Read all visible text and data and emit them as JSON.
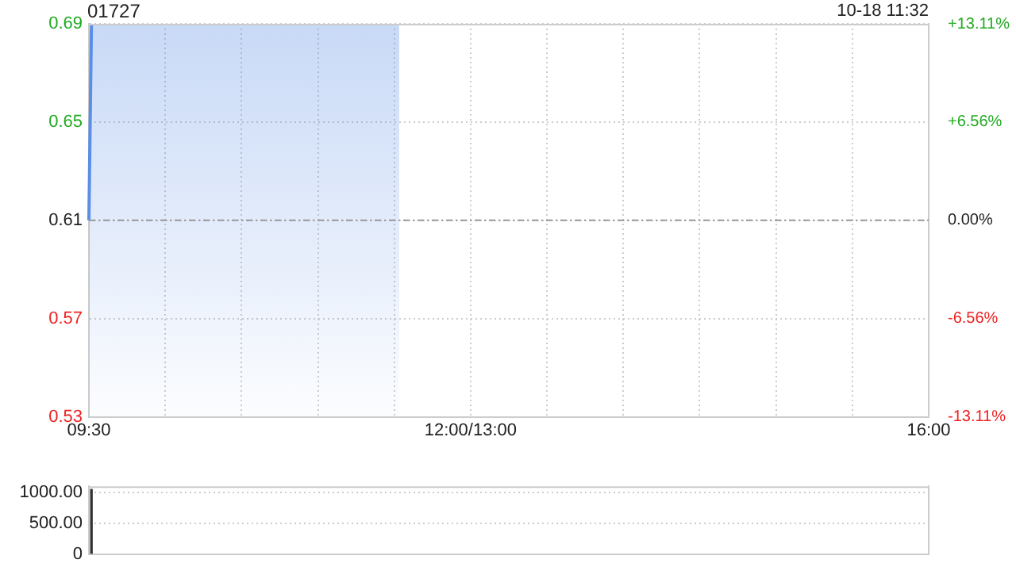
{
  "chart_data": [
    {
      "type": "area",
      "title": "01727",
      "subtitle": "10-18 11:32",
      "categories": [
        "09:30",
        null,
        null,
        null,
        null,
        null,
        null,
        null,
        null,
        null,
        null,
        null,
        null,
        null,
        null,
        null,
        null,
        null,
        null,
        null,
        null,
        null,
        null,
        null,
        null,
        null,
        null,
        null,
        null,
        null,
        null,
        null,
        null,
        null,
        null,
        null,
        null,
        null,
        null,
        null,
        null,
        null,
        null,
        null,
        null,
        null,
        null,
        null,
        null,
        null,
        null,
        null,
        null,
        null,
        null,
        null,
        null,
        null,
        null,
        null,
        null,
        null,
        null,
        null,
        null,
        null,
        null,
        null,
        null,
        null,
        null,
        null,
        null,
        null,
        null,
        null,
        null,
        null,
        null,
        null,
        null,
        null,
        null,
        null,
        null,
        null,
        null,
        null,
        null,
        null,
        null,
        null,
        null,
        null,
        null,
        null,
        null,
        null,
        null,
        null,
        null,
        null,
        null,
        null,
        null,
        null,
        null,
        null,
        null,
        null,
        null,
        null,
        null,
        null,
        null,
        null,
        null,
        null,
        null,
        null,
        null,
        null,
        null,
        null,
        null,
        null,
        null,
        null,
        null,
        null,
        null,
        null,
        null,
        null,
        null,
        null,
        null,
        null,
        null,
        null,
        null,
        null,
        null,
        null,
        null,
        null,
        null,
        null,
        null,
        null,
        "12:00/13:00",
        null,
        null,
        null,
        null,
        null,
        null,
        null,
        null,
        null,
        null,
        null,
        null,
        null,
        null,
        null,
        null,
        null,
        null,
        null,
        null,
        null,
        null,
        null,
        null,
        null,
        null,
        null,
        null,
        null,
        null,
        null,
        null,
        null,
        null,
        null,
        null,
        null,
        null,
        null,
        null,
        null,
        null,
        null,
        null,
        null,
        null,
        null,
        null,
        null,
        null,
        null,
        null,
        null,
        null,
        null,
        null,
        null,
        null,
        null,
        null,
        null,
        null,
        null,
        null,
        null,
        null,
        null,
        null,
        null,
        null,
        null,
        null,
        null,
        null,
        null,
        null,
        null,
        null,
        null,
        null,
        null,
        null,
        null,
        null,
        null,
        null,
        null,
        null,
        null,
        null,
        null,
        null,
        null,
        null,
        null,
        null,
        null,
        null,
        null,
        null,
        null,
        null,
        null,
        null,
        null,
        null,
        null,
        null,
        null,
        null,
        null,
        null,
        null,
        null,
        null,
        null,
        null,
        null,
        null,
        null,
        null,
        null,
        null,
        null,
        null,
        null,
        null,
        null,
        null,
        null,
        null,
        null,
        null,
        null,
        null,
        null,
        null,
        null,
        null,
        null,
        null,
        null,
        null,
        null,
        null,
        null,
        null,
        null,
        null,
        null,
        null,
        null,
        null,
        null,
        null,
        null,
        null,
        null,
        null,
        null,
        null,
        null,
        null,
        null,
        null,
        null,
        null,
        null,
        null,
        null,
        null,
        null,
        null,
        null,
        null,
        null,
        null,
        null,
        null,
        "16:00"
      ],
      "series": [
        {
          "color": "#5b8ee6",
          "values": [
            0.61,
            0.69,
            0.69,
            0.69,
            0.69,
            0.69,
            0.69,
            0.69,
            0.69,
            0.69,
            0.69,
            0.69,
            0.69,
            0.69,
            0.69,
            0.69,
            0.69,
            0.69,
            0.69,
            0.69,
            0.69,
            0.69,
            0.69,
            0.69,
            0.69,
            0.69,
            0.69,
            0.69,
            0.69,
            0.69,
            0.69,
            0.69,
            0.69,
            0.69,
            0.69,
            0.69,
            0.69,
            0.69,
            0.69,
            0.69,
            0.69,
            0.69,
            0.69,
            0.69,
            0.69,
            0.69,
            0.69,
            0.69,
            0.69,
            0.69,
            0.69,
            0.69,
            0.69,
            0.69,
            0.69,
            0.69,
            0.69,
            0.69,
            0.69,
            0.69,
            0.69,
            0.69,
            0.69,
            0.69,
            0.69,
            0.69,
            0.69,
            0.69,
            0.69,
            0.69,
            0.69,
            0.69,
            0.69,
            0.69,
            0.69,
            0.69,
            0.69,
            0.69,
            0.69,
            0.69,
            0.69,
            0.69,
            0.69,
            0.69,
            0.69,
            0.69,
            0.69,
            0.69,
            0.69,
            0.69,
            0.69,
            0.69,
            0.69,
            0.69,
            0.69,
            0.69,
            0.69,
            0.69,
            0.69,
            0.69,
            0.69,
            0.69,
            0.69,
            0.69,
            0.69,
            0.69,
            0.69,
            0.69,
            0.69,
            0.69,
            0.69,
            0.69,
            0.69,
            0.69,
            0.69,
            0.69,
            0.69,
            0.69,
            0.69,
            0.69,
            0.69,
            0.69,
            0.69,
            null,
            null,
            null,
            null,
            null,
            null,
            null,
            null,
            null,
            null,
            null,
            null,
            null,
            null,
            null,
            null,
            null,
            null,
            null,
            null,
            null,
            null,
            null,
            null,
            null,
            null,
            null,
            null,
            null,
            null,
            null,
            null,
            null,
            null,
            null,
            null,
            null,
            null,
            null,
            null,
            null,
            null,
            null,
            null,
            null,
            null,
            null,
            null,
            null,
            null,
            null,
            null,
            null,
            null,
            null,
            null,
            null,
            null,
            null,
            null,
            null,
            null,
            null,
            null,
            null,
            null,
            null,
            null,
            null,
            null,
            null,
            null,
            null,
            null,
            null,
            null,
            null,
            null,
            null,
            null,
            null,
            null,
            null,
            null,
            null,
            null,
            null,
            null,
            null,
            null,
            null,
            null,
            null,
            null,
            null,
            null,
            null,
            null,
            null,
            null,
            null,
            null,
            null,
            null,
            null,
            null,
            null,
            null,
            null,
            null,
            null,
            null,
            null,
            null,
            null,
            null,
            null,
            null,
            null,
            null,
            null,
            null,
            null,
            null,
            null,
            null,
            null,
            null,
            null,
            null,
            null,
            null,
            null,
            null,
            null,
            null,
            null,
            null,
            null,
            null,
            null,
            null,
            null,
            null,
            null,
            null,
            null,
            null,
            null,
            null,
            null,
            null,
            null,
            null,
            null,
            null,
            null,
            null,
            null,
            null,
            null,
            null,
            null,
            null,
            null,
            null,
            null,
            null,
            null,
            null,
            null,
            null,
            null,
            null,
            null,
            null,
            null,
            null,
            null,
            null,
            null,
            null,
            null,
            null,
            null,
            null,
            null,
            null,
            null,
            null,
            null,
            null,
            null,
            null,
            null,
            null,
            null,
            null,
            null,
            null,
            null,
            null,
            null,
            null,
            null,
            null,
            null,
            null
          ]
        }
      ],
      "ylim": [
        0.53,
        0.69
      ],
      "yticks": [
        0.53,
        0.57,
        0.61,
        0.65,
        0.69
      ],
      "y2lim": [
        -13.11,
        13.11
      ],
      "y2ticks": [
        {
          "value": -13.11,
          "label": "-13.11%"
        },
        {
          "value": -6.56,
          "label": "-6.56%"
        },
        {
          "value": 0,
          "label": "0.00%"
        },
        {
          "value": 6.56,
          "label": "+6.56%"
        },
        {
          "value": 13.11,
          "label": "+13.11%"
        }
      ],
      "ref_lines": [
        {
          "axis": "y",
          "value": 0.61
        }
      ],
      "grid": true,
      "legend": false
    },
    {
      "type": "bar",
      "categories": [
        null,
        null,
        null,
        null,
        null,
        null,
        null,
        null,
        null,
        null,
        null,
        null,
        null,
        null,
        null,
        null,
        null,
        null,
        null,
        null,
        null,
        null,
        null,
        null,
        null,
        null,
        null,
        null,
        null,
        null,
        null,
        null,
        null,
        null,
        null,
        null,
        null,
        null,
        null,
        null,
        null,
        null,
        null,
        null,
        null,
        null,
        null,
        null,
        null,
        null,
        null,
        null,
        null,
        null,
        null,
        null,
        null,
        null,
        null,
        null,
        null,
        null,
        null,
        null,
        null,
        null,
        null,
        null,
        null,
        null,
        null,
        null,
        null,
        null,
        null,
        null,
        null,
        null,
        null,
        null,
        null,
        null,
        null,
        null,
        null,
        null,
        null,
        null,
        null,
        null,
        null,
        null,
        null,
        null,
        null,
        null,
        null,
        null,
        null,
        null,
        null,
        null,
        null,
        null,
        null,
        null,
        null,
        null,
        null,
        null,
        null,
        null,
        null,
        null,
        null,
        null,
        null,
        null,
        null,
        null,
        null,
        null,
        null,
        null,
        null,
        null,
        null,
        null,
        null,
        null,
        null,
        null,
        null,
        null,
        null,
        null,
        null,
        null,
        null,
        null,
        null,
        null,
        null,
        null,
        null,
        null,
        null,
        null,
        null,
        null,
        null,
        null,
        null,
        null,
        null,
        null,
        null,
        null,
        null,
        null,
        null,
        null,
        null,
        null,
        null,
        null,
        null,
        null,
        null,
        null,
        null,
        null,
        null,
        null,
        null,
        null,
        null,
        null,
        null,
        null,
        null,
        null,
        null,
        null,
        null,
        null,
        null,
        null,
        null,
        null,
        null,
        null,
        null,
        null,
        null,
        null,
        null,
        null,
        null,
        null,
        null,
        null,
        null,
        null,
        null,
        null,
        null,
        null,
        null,
        null,
        null,
        null,
        null,
        null,
        null,
        null,
        null,
        null,
        null,
        null,
        null,
        null,
        null,
        null,
        null,
        null,
        null,
        null,
        null,
        null,
        null,
        null,
        null,
        null,
        null,
        null,
        null,
        null,
        null,
        null,
        null,
        null,
        null,
        null,
        null,
        null,
        null,
        null,
        null,
        null,
        null,
        null,
        null,
        null,
        null,
        null,
        null,
        null,
        null,
        null,
        null,
        null,
        null,
        null,
        null,
        null,
        null,
        null,
        null,
        null,
        null,
        null,
        null,
        null,
        null,
        null,
        null,
        null,
        null,
        null,
        null,
        null,
        null,
        null,
        null,
        null,
        null,
        null,
        null,
        null,
        null,
        null,
        null,
        null,
        null,
        null,
        null,
        null,
        null,
        null,
        null,
        null,
        null,
        null,
        null,
        null,
        null,
        null,
        null,
        null,
        null,
        null,
        null,
        null,
        null,
        null,
        null,
        null,
        null,
        null,
        null,
        null,
        null,
        null,
        null,
        null,
        null,
        null,
        null,
        null,
        null
      ],
      "values": [
        null,
        1050,
        null,
        null,
        null,
        null,
        null,
        null,
        null,
        null,
        null,
        null,
        null,
        null,
        null,
        null,
        null,
        null,
        null,
        null,
        null,
        null,
        null,
        null,
        null,
        null,
        null,
        null,
        null,
        null,
        null,
        null,
        null,
        null,
        null,
        null,
        null,
        null,
        null,
        null,
        null,
        null,
        null,
        null,
        null,
        null,
        null,
        null,
        null,
        null,
        null,
        null,
        null,
        null,
        null,
        null,
        null,
        null,
        null,
        null,
        null,
        null,
        null,
        null,
        null,
        null,
        null,
        null,
        null,
        null,
        null,
        null,
        null,
        null,
        null,
        null,
        null,
        null,
        null,
        null,
        null,
        null,
        null,
        null,
        null,
        null,
        null,
        null,
        null,
        null,
        null,
        null,
        null,
        null,
        null,
        null,
        null,
        null,
        null,
        null,
        null,
        null,
        null,
        null,
        null,
        null,
        null,
        null,
        null,
        null,
        null,
        null,
        null,
        null,
        null,
        null,
        null,
        null,
        null,
        null,
        null,
        null,
        null,
        null,
        null,
        null,
        null,
        null,
        null,
        null,
        null,
        null,
        null,
        null,
        null,
        null,
        null,
        null,
        null,
        null,
        null,
        null,
        null,
        null,
        null,
        null,
        null,
        null,
        null,
        null,
        null,
        null,
        null,
        null,
        null,
        null,
        null,
        null,
        null,
        null,
        null,
        null,
        null,
        null,
        null,
        null,
        null,
        null,
        null,
        null,
        null,
        null,
        null,
        null,
        null,
        null,
        null,
        null,
        null,
        null,
        null,
        null,
        null,
        null,
        null,
        null,
        null,
        null,
        null,
        null,
        null,
        null,
        null,
        null,
        null,
        null,
        null,
        null,
        null,
        null,
        null,
        null,
        null,
        null,
        null,
        null,
        null,
        null,
        null,
        null,
        null,
        null,
        null,
        null,
        null,
        null,
        null,
        null,
        null,
        null,
        null,
        null,
        null,
        null,
        null,
        null,
        null,
        null,
        null,
        null,
        null,
        null,
        null,
        null,
        null,
        null,
        null,
        null,
        null,
        null,
        null,
        null,
        null,
        null,
        null,
        null,
        null,
        null,
        null,
        null,
        null,
        null,
        null,
        null,
        null,
        null,
        null,
        null,
        null,
        null,
        null,
        null,
        null,
        null,
        null,
        null,
        null,
        null,
        null,
        null,
        null,
        null,
        null,
        null,
        null,
        null,
        null,
        null,
        null,
        null,
        null,
        null,
        null,
        null,
        null,
        null,
        null,
        null,
        null,
        null,
        null,
        null,
        null,
        null,
        null,
        null,
        null,
        null,
        null,
        null,
        null,
        null,
        null,
        null,
        null,
        null,
        null,
        null,
        null,
        null,
        null,
        null,
        null,
        null,
        null,
        null,
        null,
        null,
        null,
        null,
        null,
        null,
        null,
        null,
        null,
        null,
        null,
        null,
        null,
        null,
        null
      ],
      "color": "#333333",
      "ylim": [
        0,
        1100
      ],
      "yticks": [
        0,
        {
          "value": 500,
          "label": "500.00"
        },
        {
          "value": 1000,
          "label": "1000.00"
        }
      ],
      "tick_labels": "y",
      "grid": "y",
      "legend": false
    }
  ]
}
